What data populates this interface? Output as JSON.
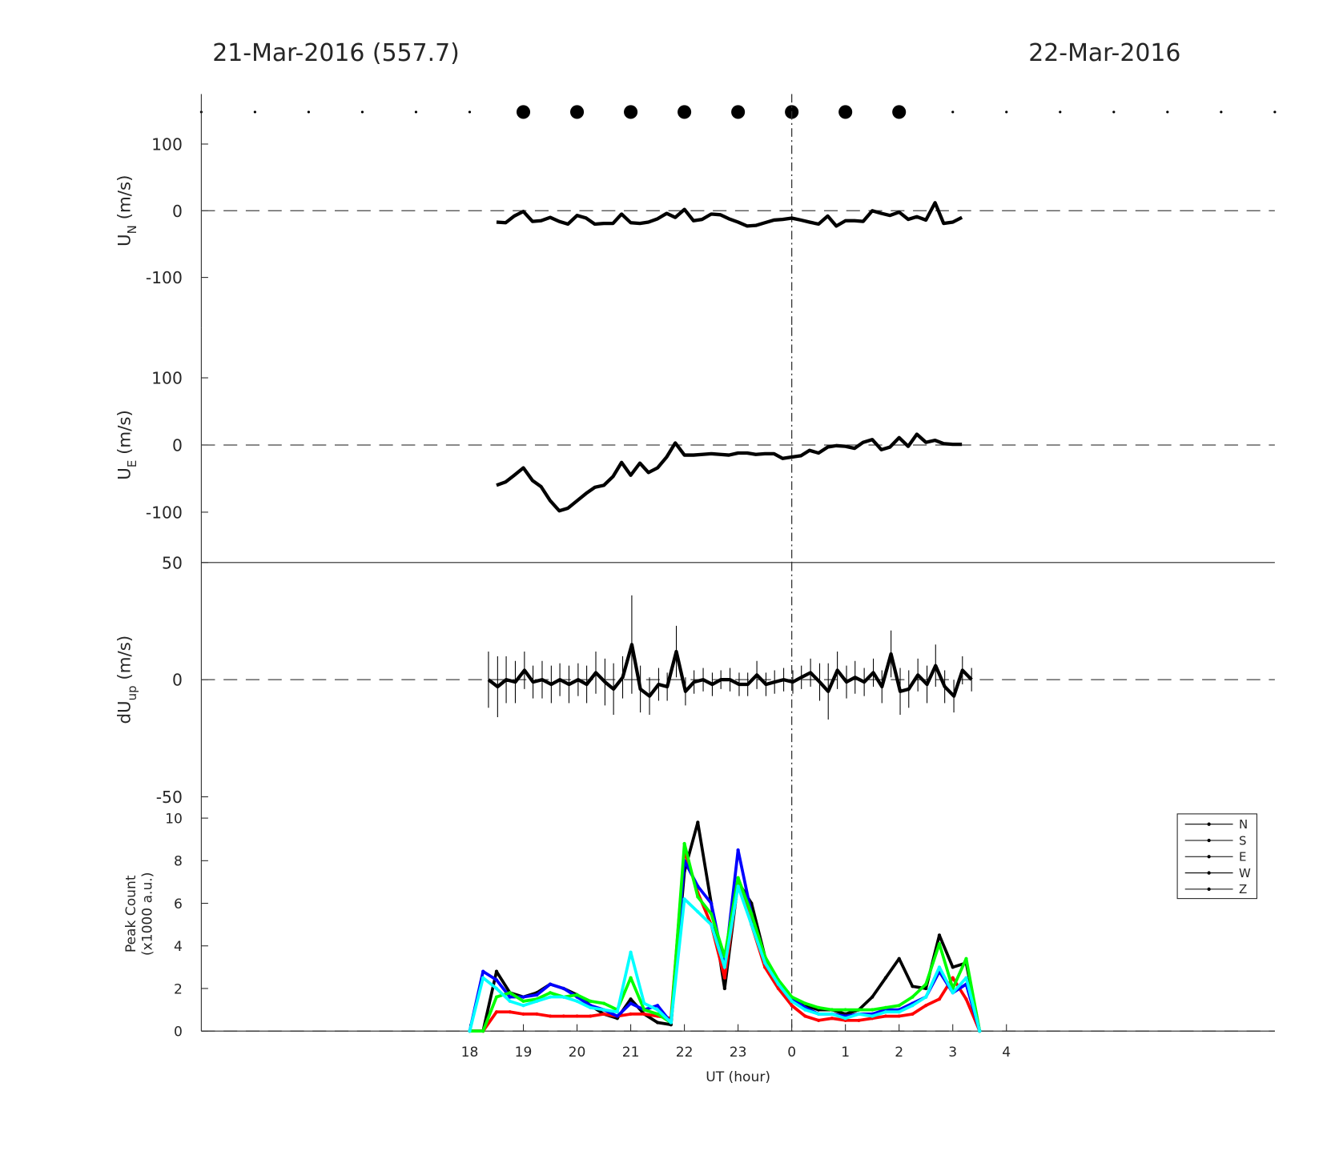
{
  "chart_data": [
    {
      "type": "dots",
      "title_left": "21-Mar-2016 (557.7)",
      "title_right": "22-Mar-2016",
      "xlim": [
        13,
        33
      ],
      "x": [
        13,
        14,
        15,
        16,
        17,
        18,
        19,
        20,
        21,
        22,
        23,
        24,
        25,
        26,
        27,
        28,
        29,
        30,
        31,
        32,
        33
      ],
      "sizes": [
        3,
        3,
        3,
        3,
        3,
        3,
        16,
        16,
        16,
        16,
        16,
        16,
        16,
        16,
        3,
        3,
        3,
        3,
        3,
        3,
        3
      ],
      "color": "#000000"
    },
    {
      "type": "line",
      "ylabel": "U",
      "ylabel_sub": "N",
      "ylabel_unit": "(m/s)",
      "xlim": [
        13,
        33
      ],
      "ylim": [
        -175,
        175
      ],
      "yticks": [
        -100,
        0,
        100
      ],
      "zero_line": true,
      "vline": 24,
      "color": "#000000",
      "x": [
        18.5,
        18.67,
        18.83,
        19,
        19.17,
        19.33,
        19.5,
        19.67,
        19.83,
        20,
        20.17,
        20.33,
        20.5,
        20.67,
        20.83,
        21,
        21.17,
        21.33,
        21.5,
        21.67,
        21.83,
        22,
        22.17,
        22.33,
        22.5,
        22.67,
        22.83,
        23,
        23.17,
        23.33,
        23.5,
        23.67,
        23.83,
        24,
        24.17,
        24.33,
        24.5,
        24.67,
        24.83,
        25,
        25.17,
        25.33,
        25.5,
        25.67,
        25.83,
        26,
        26.17,
        26.33,
        26.5,
        26.67,
        26.83,
        27,
        27.17
      ],
      "values": [
        -17,
        -18,
        -8,
        -1,
        -16,
        -15,
        -10,
        -16,
        -20,
        -7,
        -11,
        -20,
        -19,
        -19,
        -5,
        -18,
        -19,
        -17,
        -12,
        -4,
        -10,
        2,
        -15,
        -13,
        -5,
        -6,
        -12,
        -17,
        -23,
        -22,
        -18,
        -14,
        -13,
        -11,
        -14,
        -17,
        -20,
        -8,
        -23,
        -15,
        -15,
        -16,
        0,
        -4,
        -7,
        -2,
        -13,
        -9,
        -14,
        12,
        -19,
        -17,
        -10
      ]
    },
    {
      "type": "line",
      "ylabel": "U",
      "ylabel_sub": "E",
      "ylabel_unit": "(m/s)",
      "xlim": [
        13,
        33
      ],
      "ylim": [
        -175,
        175
      ],
      "yticks": [
        -100,
        0,
        100
      ],
      "zero_line": true,
      "vline": 24,
      "color": "#000000",
      "x": [
        18.5,
        18.67,
        18.83,
        19,
        19.17,
        19.33,
        19.5,
        19.67,
        19.83,
        20,
        20.17,
        20.33,
        20.5,
        20.67,
        20.83,
        21,
        21.17,
        21.33,
        21.5,
        21.67,
        21.83,
        22,
        22.17,
        22.33,
        22.5,
        22.67,
        22.83,
        23,
        23.17,
        23.33,
        23.5,
        23.67,
        23.83,
        24,
        24.17,
        24.33,
        24.5,
        24.67,
        24.83,
        25,
        25.17,
        25.33,
        25.5,
        25.67,
        25.83,
        26,
        26.17,
        26.33,
        26.5,
        26.67,
        26.83,
        27,
        27.17
      ],
      "values": [
        -60,
        -55,
        -45,
        -34,
        -53,
        -62,
        -83,
        -98,
        -94,
        -83,
        -72,
        -63,
        -60,
        -47,
        -26,
        -45,
        -27,
        -41,
        -34,
        -18,
        3,
        -15,
        -15,
        -14,
        -13,
        -14,
        -15,
        -12,
        -12,
        -14,
        -13,
        -13,
        -20,
        -18,
        -16,
        -8,
        -12,
        -3,
        -1,
        -2,
        -5,
        4,
        8,
        -7,
        -3,
        11,
        -2,
        16,
        4,
        7,
        2,
        1,
        1
      ]
    },
    {
      "type": "line",
      "ylabel": "dU",
      "ylabel_sub": "up",
      "ylabel_unit": "(m/s)",
      "xlim": [
        13,
        33
      ],
      "ylim": [
        -50,
        50
      ],
      "yticks": [
        -50,
        0,
        50
      ],
      "zero_line": true,
      "vline": 24,
      "box_top": true,
      "color": "#000000",
      "x": [
        18.35,
        18.52,
        18.68,
        18.85,
        19.02,
        19.18,
        19.35,
        19.52,
        19.68,
        19.85,
        20.02,
        20.18,
        20.35,
        20.52,
        20.68,
        20.85,
        21.02,
        21.18,
        21.35,
        21.52,
        21.68,
        21.85,
        22.02,
        22.18,
        22.35,
        22.52,
        22.68,
        22.85,
        23.02,
        23.18,
        23.35,
        23.52,
        23.68,
        23.85,
        24.02,
        24.18,
        24.35,
        24.52,
        24.68,
        24.85,
        25.02,
        25.18,
        25.35,
        25.52,
        25.68,
        25.85,
        26.02,
        26.18,
        26.35,
        26.52,
        26.68,
        26.85,
        27.02,
        27.18,
        27.35
      ],
      "values": [
        0,
        -3,
        0,
        -1,
        4,
        -1,
        0,
        -2,
        0,
        -2,
        0,
        -2,
        3,
        -1,
        -4,
        1,
        15,
        -4,
        -7,
        -2,
        -3,
        12,
        -5,
        -1,
        0,
        -2,
        0,
        0,
        -2,
        -2,
        2,
        -2,
        -1,
        0,
        -1,
        1,
        3,
        -1,
        -5,
        4,
        -1,
        1,
        -1,
        3,
        -3,
        11,
        -5,
        -4,
        2,
        -2,
        6,
        -3,
        -7,
        4,
        0
      ],
      "errors": [
        12,
        13,
        10,
        9,
        8,
        7,
        8,
        8,
        7,
        8,
        7,
        8,
        9,
        10,
        11,
        9,
        21,
        10,
        8,
        7,
        6,
        11,
        6,
        5,
        5,
        5,
        4,
        5,
        5,
        5,
        6,
        5,
        5,
        5,
        5,
        5,
        6,
        8,
        12,
        8,
        7,
        7,
        6,
        6,
        7,
        10,
        10,
        8,
        7,
        8,
        9,
        7,
        7,
        6,
        5
      ]
    },
    {
      "type": "line",
      "ylabel": [
        "Peak Count",
        "(x1000 a.u.)"
      ],
      "xlabel": "UT (hour)",
      "xlim": [
        13,
        33
      ],
      "ylim": [
        0,
        11
      ],
      "yticks": [
        0,
        2,
        4,
        6,
        8,
        10
      ],
      "zero_line": true,
      "vline": 24,
      "legend": "upper right",
      "xticks": [
        18,
        19,
        20,
        21,
        22,
        23,
        {
          "value": 24,
          "label": "0"
        },
        {
          "value": 25,
          "label": "1"
        },
        {
          "value": 26,
          "label": "2"
        },
        {
          "value": 27,
          "label": "3"
        },
        {
          "value": 28,
          "label": "4"
        }
      ],
      "x": [
        18,
        18.25,
        18.5,
        18.75,
        19,
        19.25,
        19.5,
        19.75,
        20,
        20.25,
        20.5,
        20.75,
        21,
        21.25,
        21.5,
        21.75,
        22,
        22.25,
        22.5,
        22.75,
        23,
        23.25,
        23.5,
        23.75,
        24,
        24.25,
        24.5,
        24.75,
        25,
        25.25,
        25.5,
        25.75,
        26,
        26.25,
        26.5,
        26.75,
        27,
        27.25,
        27.5
      ],
      "series": [
        {
          "name": "N",
          "color": "#000000",
          "values": [
            0,
            0,
            2.8,
            1.8,
            1.6,
            1.8,
            2.2,
            2.0,
            1.7,
            1.2,
            0.8,
            0.6,
            1.5,
            0.8,
            0.4,
            0.3,
            7.5,
            9.8,
            6,
            2,
            7,
            6,
            3.5,
            2.2,
            1.5,
            1.2,
            1.0,
            1.0,
            0.8,
            1.0,
            1.6,
            2.5,
            3.4,
            2.1,
            2.0,
            4.5,
            3.0,
            3.2,
            0
          ]
        },
        {
          "name": "S",
          "color": "#ff0000",
          "values": [
            0,
            0,
            0.9,
            0.9,
            0.8,
            0.8,
            0.7,
            0.7,
            0.7,
            0.7,
            0.8,
            0.7,
            0.8,
            0.8,
            0.7,
            0.6,
            8.5,
            6.5,
            5.0,
            2.5,
            7.0,
            5.0,
            3.0,
            2.0,
            1.2,
            0.7,
            0.5,
            0.6,
            0.5,
            0.5,
            0.6,
            0.7,
            0.7,
            0.8,
            1.2,
            1.5,
            2.5,
            1.5,
            0
          ]
        },
        {
          "name": "E",
          "color": "#0000ff",
          "values": [
            0,
            2.8,
            2.4,
            1.6,
            1.6,
            1.7,
            2.2,
            2.0,
            1.6,
            1.2,
            1.0,
            0.7,
            1.3,
            1.0,
            1.2,
            0.4,
            8.0,
            6.8,
            6.0,
            3.0,
            8.5,
            5.5,
            3.2,
            2.3,
            1.5,
            1.1,
            0.8,
            0.8,
            0.7,
            0.8,
            0.8,
            1.0,
            1.0,
            1.3,
            1.6,
            2.8,
            1.8,
            2.2,
            0
          ]
        },
        {
          "name": "W",
          "color": "#00ff00",
          "values": [
            0,
            0,
            1.6,
            1.8,
            1.4,
            1.5,
            1.8,
            1.6,
            1.7,
            1.4,
            1.3,
            1.0,
            2.5,
            1.0,
            0.8,
            0.4,
            8.8,
            6.3,
            5.5,
            3.5,
            7.2,
            5.5,
            3.5,
            2.4,
            1.6,
            1.3,
            1.1,
            1.0,
            1.0,
            1.0,
            1.0,
            1.1,
            1.2,
            1.6,
            2.2,
            4.1,
            2.0,
            3.4,
            0
          ]
        },
        {
          "name": "Z",
          "color": "#00ffff",
          "values": [
            0,
            2.5,
            2.0,
            1.4,
            1.2,
            1.4,
            1.6,
            1.6,
            1.4,
            1.1,
            1.0,
            0.9,
            3.7,
            1.3,
            1.0,
            0.4,
            6.2,
            5.6,
            5.0,
            3.0,
            6.8,
            5.0,
            3.2,
            2.2,
            1.4,
            1.0,
            0.8,
            0.8,
            0.6,
            0.8,
            0.7,
            0.9,
            0.9,
            1.2,
            1.6,
            3.0,
            1.8,
            2.5,
            0
          ]
        }
      ]
    }
  ]
}
